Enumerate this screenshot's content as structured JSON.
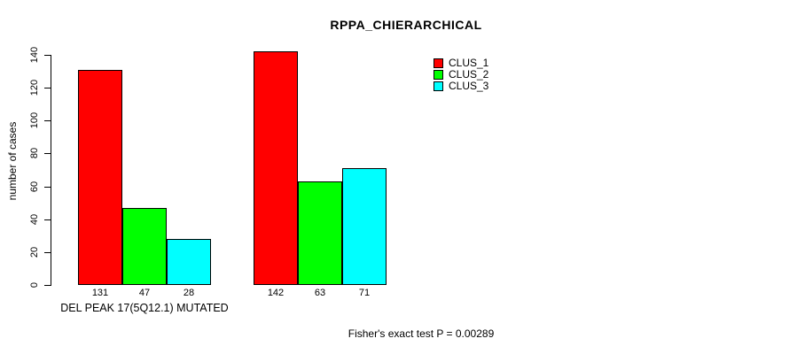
{
  "chart_data": {
    "type": "bar",
    "title": "RPPA_CHIERARCHICAL",
    "ylabel": "number of cases",
    "xlabel": "DEL PEAK 17(5Q12.1) MUTATED",
    "footer": "Fisher's exact test P = 0.00289",
    "groups": [
      "DEL PEAK 17(5Q12.1) MUTATED",
      ""
    ],
    "series": [
      {
        "name": "CLUS_1",
        "color": "#FF0000",
        "values": [
          131,
          142
        ]
      },
      {
        "name": "CLUS_2",
        "color": "#00FF00",
        "values": [
          47,
          63
        ]
      },
      {
        "name": "CLUS_3",
        "color": "#00FFFF",
        "values": [
          28,
          71
        ]
      }
    ],
    "yticks": [
      0,
      20,
      40,
      60,
      80,
      100,
      120,
      140
    ],
    "ylim": [
      0,
      140
    ],
    "bar_value_labels": true,
    "grid": false,
    "legend_position": "top-right"
  }
}
